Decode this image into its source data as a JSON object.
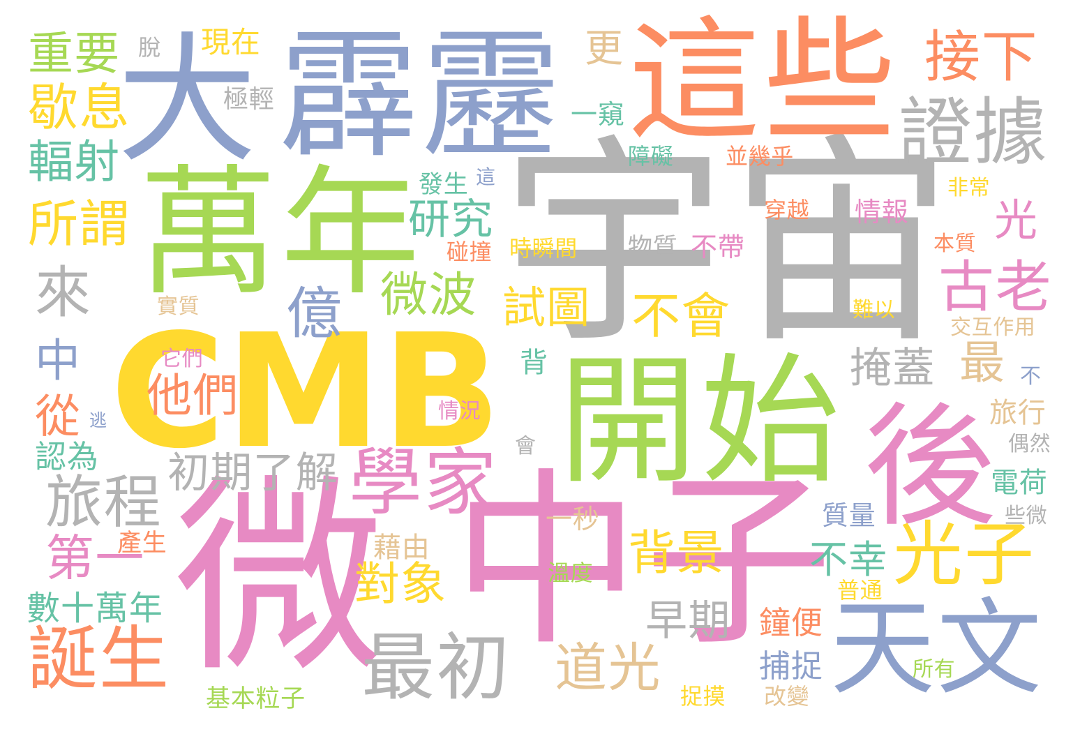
{
  "palette": {
    "blue": "#8da0cb",
    "orange": "#fc8d62",
    "green": "#a6d854",
    "gray": "#b3b3b3",
    "pink": "#e78ac3",
    "yellow": "#ffd92f",
    "tan": "#e5c494",
    "teal": "#66c2a5"
  },
  "words": [
    {
      "id": "w-yuzhou",
      "text": "宇宙",
      "color": "#b3b3b3"
    },
    {
      "id": "w-cmb",
      "text": "CMB",
      "color": "#ffd92f"
    },
    {
      "id": "w-wei",
      "text": "微",
      "color": "#e78ac3"
    },
    {
      "id": "w-zhongzi",
      "text": "中子",
      "color": "#e78ac3"
    },
    {
      "id": "w-wannian",
      "text": "萬年",
      "color": "#a6d854"
    },
    {
      "id": "w-kaishi",
      "text": "開始",
      "color": "#a6d854"
    },
    {
      "id": "w-da",
      "text": "大",
      "color": "#8da0cb"
    },
    {
      "id": "w-pili",
      "text": "霹靂",
      "color": "#8da0cb"
    },
    {
      "id": "w-zhexie",
      "text": "這些",
      "color": "#fc8d62"
    },
    {
      "id": "w-hou",
      "text": "後",
      "color": "#e78ac3"
    },
    {
      "id": "w-tianwen",
      "text": "天文",
      "color": "#8da0cb"
    },
    {
      "id": "w-xuejia",
      "text": "學家",
      "color": "#e78ac3"
    },
    {
      "id": "w-zuichu",
      "text": "最初",
      "color": "#b3b3b3"
    },
    {
      "id": "w-dansheng",
      "text": "誕生",
      "color": "#fc8d62"
    },
    {
      "id": "w-zhengju",
      "text": "證據",
      "color": "#b3b3b3"
    },
    {
      "id": "w-guangzi",
      "text": "光子",
      "color": "#ffd92f"
    },
    {
      "id": "w-gulao",
      "text": "古老",
      "color": "#e78ac3"
    },
    {
      "id": "w-jiexia",
      "text": "接下",
      "color": "#fc8d62"
    },
    {
      "id": "w-lvcheng",
      "text": "旅程",
      "color": "#b3b3b3"
    },
    {
      "id": "w-zhongyao",
      "text": "重要",
      "color": "#a6d854"
    },
    {
      "id": "w-xiexi",
      "text": "歇息",
      "color": "#ffd92f"
    },
    {
      "id": "w-fushe",
      "text": "輻射",
      "color": "#66c2a5"
    },
    {
      "id": "w-suowei",
      "text": "所謂",
      "color": "#ffd92f"
    },
    {
      "id": "w-lai",
      "text": "來",
      "color": "#b3b3b3"
    },
    {
      "id": "w-zhong",
      "text": "中",
      "color": "#8da0cb"
    },
    {
      "id": "w-cong",
      "text": "從",
      "color": "#fc8d62"
    },
    {
      "id": "w-renwei",
      "text": "認為",
      "color": "#66c2a5"
    },
    {
      "id": "w-diyi",
      "text": "第一",
      "color": "#e78ac3"
    },
    {
      "id": "w-shushiwannian",
      "text": "數十萬年",
      "color": "#66c2a5"
    },
    {
      "id": "w-chanshen",
      "text": "產生",
      "color": "#fc8d62"
    },
    {
      "id": "w-yi",
      "text": "億",
      "color": "#8da0cb"
    },
    {
      "id": "w-yanjiu",
      "text": "研究",
      "color": "#66c2a5"
    },
    {
      "id": "w-weibo",
      "text": "微波",
      "color": "#a6d854"
    },
    {
      "id": "w-tamen",
      "text": "他們",
      "color": "#fc8d62"
    },
    {
      "id": "w-chuqi",
      "text": "初期了解",
      "color": "#b3b3b3"
    },
    {
      "id": "w-shitu",
      "text": "試圖",
      "color": "#ffd92f"
    },
    {
      "id": "w-buhui",
      "text": "不會",
      "color": "#ffd92f"
    },
    {
      "id": "w-yangai",
      "text": "掩蓋",
      "color": "#b3b3b3"
    },
    {
      "id": "w-zui",
      "text": "最",
      "color": "#e5c494"
    },
    {
      "id": "w-beijing",
      "text": "背景",
      "color": "#ffd92f"
    },
    {
      "id": "w-duixiang",
      "text": "對象",
      "color": "#ffd92f"
    },
    {
      "id": "w-daoguang",
      "text": "道光",
      "color": "#e5c494"
    },
    {
      "id": "w-zaoqi",
      "text": "早期",
      "color": "#b3b3b3"
    },
    {
      "id": "w-buxing",
      "text": "不幸",
      "color": "#66c2a5"
    },
    {
      "id": "w-guang",
      "text": "光",
      "color": "#e78ac3"
    },
    {
      "id": "w-geng",
      "text": "更",
      "color": "#e5c494"
    },
    {
      "id": "w-xianzai",
      "text": "現在",
      "color": "#ffd92f"
    },
    {
      "id": "w-tuo",
      "text": "脫",
      "color": "#b3b3b3"
    },
    {
      "id": "w-jiqing",
      "text": "極輕",
      "color": "#b3b3b3"
    },
    {
      "id": "w-yikui",
      "text": "一窺",
      "color": "#66c2a5"
    },
    {
      "id": "w-zhangai",
      "text": "障礙",
      "color": "#66c2a5"
    },
    {
      "id": "w-bingjihu",
      "text": "並幾乎",
      "color": "#fc8d62"
    },
    {
      "id": "w-fashengzhe",
      "text": "發生",
      "color": "#66c2a5"
    },
    {
      "id": "w-zhe",
      "text": "這",
      "color": "#8da0cb"
    },
    {
      "id": "w-feichang",
      "text": "非常",
      "color": "#ffd92f"
    },
    {
      "id": "w-chuanyue",
      "text": "穿越",
      "color": "#fc8d62"
    },
    {
      "id": "w-qingbao",
      "text": "情報",
      "color": "#e78ac3"
    },
    {
      "id": "w-pengzhuang",
      "text": "碰撞",
      "color": "#fc8d62"
    },
    {
      "id": "w-shishunjian",
      "text": "時瞬間",
      "color": "#ffd92f"
    },
    {
      "id": "w-wuzhi",
      "text": "物質",
      "color": "#b3b3b3"
    },
    {
      "id": "w-budai",
      "text": "不帶",
      "color": "#e78ac3"
    },
    {
      "id": "w-benzhi",
      "text": "本質",
      "color": "#fc8d62"
    },
    {
      "id": "w-shizhi",
      "text": "實質",
      "color": "#e5c494"
    },
    {
      "id": "w-nanyi",
      "text": "難以",
      "color": "#ffd92f"
    },
    {
      "id": "w-jiaohu",
      "text": "交互作用",
      "color": "#e5c494"
    },
    {
      "id": "w-tamen2",
      "text": "它們",
      "color": "#e78ac3"
    },
    {
      "id": "w-bei",
      "text": "背",
      "color": "#66c2a5"
    },
    {
      "id": "w-bu",
      "text": "不",
      "color": "#8da0cb"
    },
    {
      "id": "w-tao",
      "text": "逃",
      "color": "#8da0cb"
    },
    {
      "id": "w-qingkuang",
      "text": "情況",
      "color": "#e78ac3"
    },
    {
      "id": "w-lvxing",
      "text": "旅行",
      "color": "#e5c494"
    },
    {
      "id": "w-hui",
      "text": "會",
      "color": "#b3b3b3"
    },
    {
      "id": "w-ouran",
      "text": "偶然",
      "color": "#b3b3b3"
    },
    {
      "id": "w-dianhe",
      "text": "電荷",
      "color": "#66c2a5"
    },
    {
      "id": "w-zhiliang",
      "text": "質量",
      "color": "#8da0cb"
    },
    {
      "id": "w-yimiao",
      "text": "一秒",
      "color": "#e5c494"
    },
    {
      "id": "w-xiewei",
      "text": "些微",
      "color": "#b3b3b3"
    },
    {
      "id": "w-jieyou",
      "text": "藉由",
      "color": "#e5c494"
    },
    {
      "id": "w-wendu",
      "text": "溫度",
      "color": "#a6d854"
    },
    {
      "id": "w-putong",
      "text": "普通",
      "color": "#ffd92f"
    },
    {
      "id": "w-zhongbian",
      "text": "鐘便",
      "color": "#fc8d62"
    },
    {
      "id": "w-buzhuo",
      "text": "捕捉",
      "color": "#8da0cb"
    },
    {
      "id": "w-suoyou",
      "text": "所有",
      "color": "#a6d854"
    },
    {
      "id": "w-jibenlizi",
      "text": "基本粒子",
      "color": "#a6d854"
    },
    {
      "id": "w-zhuomo",
      "text": "捉摸",
      "color": "#ffd92f"
    },
    {
      "id": "w-gaibian",
      "text": "改變",
      "color": "#e5c494"
    }
  ]
}
